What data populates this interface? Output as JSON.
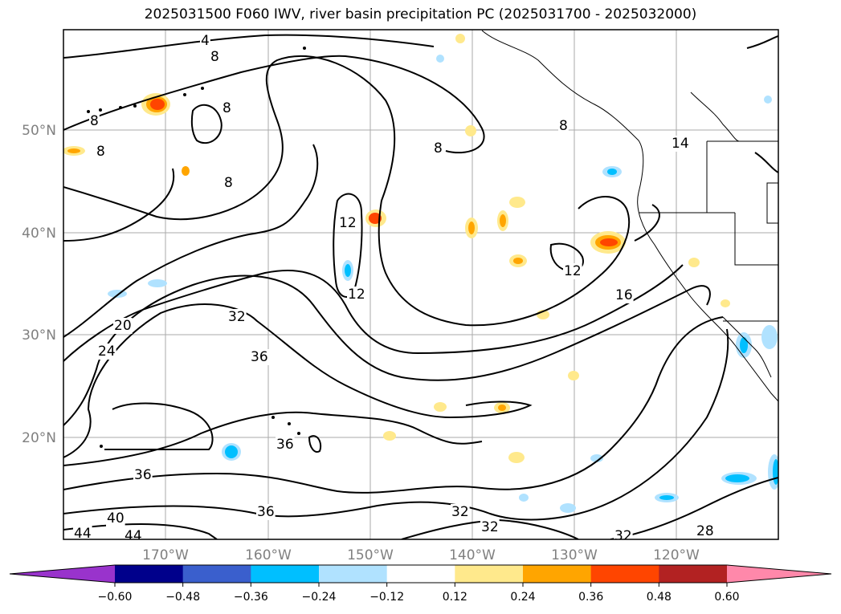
{
  "title": "2025031500 F060 IWV, river basin precipitation PC (2025031700 - 2025032000)",
  "lat_labels": [
    "50°N",
    "40°N",
    "30°N",
    "20°N"
  ],
  "lon_labels": [
    "170°W",
    "160°W",
    "150°W",
    "140°W",
    "130°W",
    "120°W"
  ],
  "contour_labels": [
    "4",
    "8",
    "8",
    "8",
    "8",
    "8",
    "8",
    "8",
    "12",
    "12",
    "12",
    "16",
    "14",
    "20",
    "24",
    "32",
    "36",
    "36",
    "36",
    "36",
    "32",
    "32",
    "32",
    "28",
    "40",
    "44",
    "44"
  ],
  "colorbar": {
    "colors": [
      "#9933cc",
      "#00008b",
      "#3a5fcd",
      "#00bfff",
      "#b0e2ff",
      "#ffffff",
      "#ffe98c",
      "#ffa500",
      "#ff4500",
      "#b22222",
      "#ff88aa"
    ],
    "tick_labels": [
      "−0.60",
      "−0.48",
      "−0.36",
      "−0.24",
      "−0.12",
      "0.12",
      "0.24",
      "0.36",
      "0.48",
      "0.60"
    ]
  }
}
